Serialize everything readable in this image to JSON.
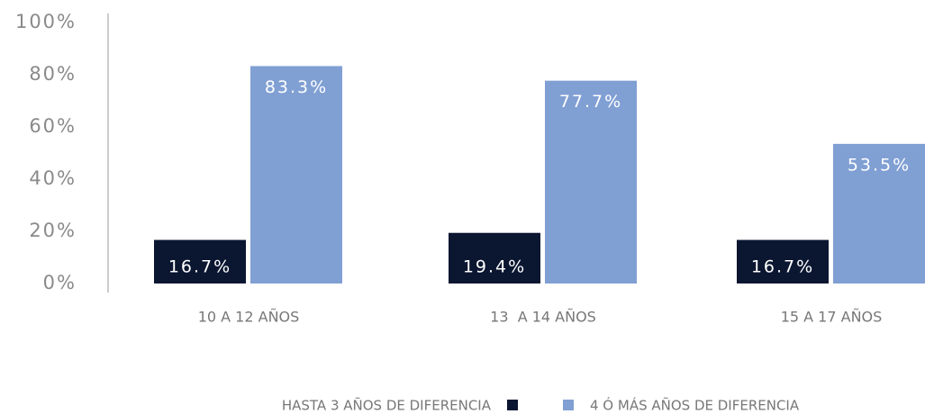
{
  "chart_data": {
    "type": "bar",
    "categories": [
      "10 A 12 AÑOS",
      "13  A 14 AÑOS",
      "15 A 17 AÑOS"
    ],
    "series": [
      {
        "name": "HASTA 3 AÑOS DE DIFERENCIA",
        "color": "#0b1631",
        "values": [
          16.7,
          19.4,
          16.7
        ],
        "value_labels": [
          "16.7%",
          "19.4%",
          "16.7%"
        ]
      },
      {
        "name": "4 Ó MÁS AÑOS DE DIFERENCIA",
        "color": "#809fd3",
        "values": [
          83.3,
          77.7,
          53.5
        ],
        "value_labels": [
          "83.3%",
          "77.7%",
          "53.5%"
        ]
      }
    ],
    "ylim": [
      0,
      100
    ],
    "yticks": [
      {
        "value": 0,
        "label": "0%"
      },
      {
        "value": 20,
        "label": "20%"
      },
      {
        "value": 40,
        "label": "40%"
      },
      {
        "value": 60,
        "label": "60%"
      },
      {
        "value": 80,
        "label": "80%"
      },
      {
        "value": 100,
        "label": "100%"
      }
    ],
    "grid": false
  }
}
